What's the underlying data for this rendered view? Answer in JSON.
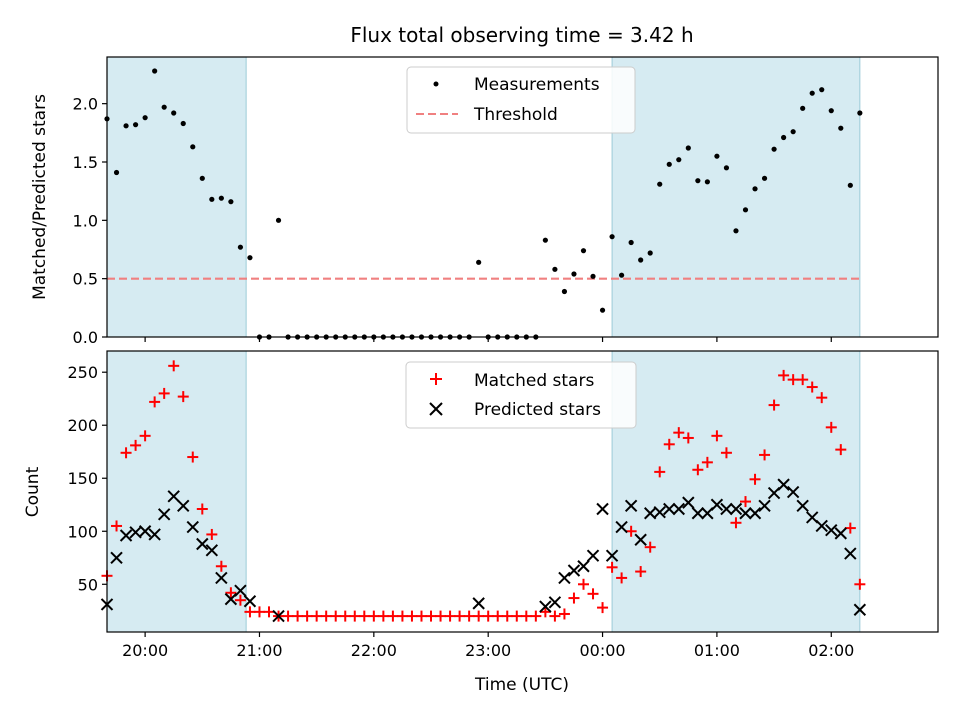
{
  "chart_data": [
    {
      "type": "scatter",
      "title": "Flux total observing time = 3.42 h",
      "xlabel": "",
      "ylabel": "Matched/Predicted stars",
      "ylim": [
        0.0,
        2.4
      ],
      "yticks": [
        0.0,
        0.5,
        1.0,
        1.5,
        2.0
      ],
      "xlim": [
        "19:40",
        "02:56"
      ],
      "xticks": [
        "20:00",
        "21:00",
        "22:00",
        "23:00",
        "00:00",
        "01:00",
        "02:00"
      ],
      "xtick_labels_shown": false,
      "grid": false,
      "legend_position": "top-center",
      "shaded_time_ranges": [
        [
          "19:40",
          "20:53"
        ],
        [
          "00:05",
          "02:15"
        ]
      ],
      "threshold": 0.5,
      "series": [
        {
          "name": "Measurements",
          "color": "#000000",
          "marker": "dot",
          "points": [
            [
              "19:40",
              1.87
            ],
            [
              "19:45",
              1.41
            ],
            [
              "19:50",
              1.81
            ],
            [
              "19:55",
              1.82
            ],
            [
              "20:00",
              1.88
            ],
            [
              "20:05",
              2.28
            ],
            [
              "20:10",
              1.97
            ],
            [
              "20:15",
              1.92
            ],
            [
              "20:20",
              1.83
            ],
            [
              "20:25",
              1.63
            ],
            [
              "20:30",
              1.36
            ],
            [
              "20:35",
              1.18
            ],
            [
              "20:40",
              1.19
            ],
            [
              "20:45",
              1.16
            ],
            [
              "20:50",
              0.77
            ],
            [
              "20:55",
              0.68
            ],
            [
              "21:00",
              0.0
            ],
            [
              "21:05",
              0.0
            ],
            [
              "21:10",
              1.0
            ],
            [
              "21:15",
              0.0
            ],
            [
              "21:20",
              0.0
            ],
            [
              "21:25",
              0.0
            ],
            [
              "21:30",
              0.0
            ],
            [
              "21:35",
              0.0
            ],
            [
              "21:40",
              0.0
            ],
            [
              "21:45",
              0.0
            ],
            [
              "21:50",
              0.0
            ],
            [
              "21:55",
              0.0
            ],
            [
              "22:00",
              0.0
            ],
            [
              "22:05",
              0.0
            ],
            [
              "22:10",
              0.0
            ],
            [
              "22:15",
              0.0
            ],
            [
              "22:20",
              0.0
            ],
            [
              "22:25",
              0.0
            ],
            [
              "22:30",
              0.0
            ],
            [
              "22:35",
              0.0
            ],
            [
              "22:40",
              0.0
            ],
            [
              "22:45",
              0.0
            ],
            [
              "22:50",
              0.0
            ],
            [
              "22:55",
              0.64
            ],
            [
              "23:00",
              0.0
            ],
            [
              "23:05",
              0.0
            ],
            [
              "23:10",
              0.0
            ],
            [
              "23:15",
              0.0
            ],
            [
              "23:20",
              0.0
            ],
            [
              "23:25",
              0.0
            ],
            [
              "23:30",
              0.83
            ],
            [
              "23:35",
              0.58
            ],
            [
              "23:40",
              0.39
            ],
            [
              "23:45",
              0.54
            ],
            [
              "23:50",
              0.74
            ],
            [
              "23:55",
              0.52
            ],
            [
              "00:00",
              0.23
            ],
            [
              "00:05",
              0.86
            ],
            [
              "00:10",
              0.53
            ],
            [
              "00:15",
              0.81
            ],
            [
              "00:20",
              0.66
            ],
            [
              "00:25",
              0.72
            ],
            [
              "00:30",
              1.31
            ],
            [
              "00:35",
              1.48
            ],
            [
              "00:40",
              1.52
            ],
            [
              "00:45",
              1.62
            ],
            [
              "00:50",
              1.34
            ],
            [
              "00:55",
              1.33
            ],
            [
              "01:00",
              1.55
            ],
            [
              "01:05",
              1.45
            ],
            [
              "01:10",
              0.91
            ],
            [
              "01:15",
              1.09
            ],
            [
              "01:20",
              1.27
            ],
            [
              "01:25",
              1.36
            ],
            [
              "01:30",
              1.61
            ],
            [
              "01:35",
              1.71
            ],
            [
              "01:40",
              1.76
            ],
            [
              "01:45",
              1.96
            ],
            [
              "01:50",
              2.09
            ],
            [
              "01:55",
              2.12
            ],
            [
              "02:00",
              1.94
            ],
            [
              "02:05",
              1.79
            ],
            [
              "02:10",
              1.3
            ],
            [
              "02:15",
              1.92
            ]
          ]
        },
        {
          "name": "Threshold",
          "color": "#f08080",
          "style": "dashed",
          "points": [
            [
              "19:40",
              0.5
            ],
            [
              "02:15",
              0.5
            ]
          ]
        }
      ]
    },
    {
      "type": "scatter",
      "title": "",
      "xlabel": "Time (UTC)",
      "ylabel": "Count",
      "ylim": [
        5,
        270
      ],
      "yticks": [
        50,
        100,
        150,
        200,
        250
      ],
      "xlim": [
        "19:40",
        "02:56"
      ],
      "xticks": [
        "20:00",
        "21:00",
        "22:00",
        "23:00",
        "00:00",
        "01:00",
        "02:00"
      ],
      "grid": false,
      "legend_position": "top-center",
      "shaded_time_ranges": [
        [
          "19:40",
          "20:53"
        ],
        [
          "00:05",
          "02:15"
        ]
      ],
      "series": [
        {
          "name": "Matched stars",
          "color": "#ff0000",
          "marker": "plus",
          "points": [
            [
              "19:40",
              58
            ],
            [
              "19:45",
              105
            ],
            [
              "19:50",
              174
            ],
            [
              "19:55",
              181
            ],
            [
              "20:00",
              190
            ],
            [
              "20:05",
              222
            ],
            [
              "20:10",
              230
            ],
            [
              "20:15",
              256
            ],
            [
              "20:20",
              227
            ],
            [
              "20:25",
              170
            ],
            [
              "20:30",
              121
            ],
            [
              "20:35",
              97
            ],
            [
              "20:40",
              67
            ],
            [
              "20:45",
              42
            ],
            [
              "20:50",
              35
            ],
            [
              "20:55",
              24
            ],
            [
              "21:00",
              24
            ],
            [
              "21:05",
              24
            ],
            [
              "21:10",
              20
            ],
            [
              "21:15",
              20
            ],
            [
              "21:20",
              20
            ],
            [
              "21:25",
              20
            ],
            [
              "21:30",
              20
            ],
            [
              "21:35",
              20
            ],
            [
              "21:40",
              20
            ],
            [
              "21:45",
              20
            ],
            [
              "21:50",
              20
            ],
            [
              "21:55",
              20
            ],
            [
              "22:00",
              20
            ],
            [
              "22:05",
              20
            ],
            [
              "22:10",
              20
            ],
            [
              "22:15",
              20
            ],
            [
              "22:20",
              20
            ],
            [
              "22:25",
              20
            ],
            [
              "22:30",
              20
            ],
            [
              "22:35",
              20
            ],
            [
              "22:40",
              20
            ],
            [
              "22:45",
              20
            ],
            [
              "22:50",
              20
            ],
            [
              "22:55",
              20
            ],
            [
              "23:00",
              20
            ],
            [
              "23:05",
              20
            ],
            [
              "23:10",
              20
            ],
            [
              "23:15",
              20
            ],
            [
              "23:20",
              20
            ],
            [
              "23:25",
              20
            ],
            [
              "23:30",
              24
            ],
            [
              "23:35",
              20
            ],
            [
              "23:40",
              22
            ],
            [
              "23:45",
              37
            ],
            [
              "23:50",
              50
            ],
            [
              "23:55",
              41
            ],
            [
              "00:00",
              28
            ],
            [
              "00:05",
              66
            ],
            [
              "00:10",
              56
            ],
            [
              "00:15",
              100
            ],
            [
              "00:20",
              62
            ],
            [
              "00:25",
              85
            ],
            [
              "00:30",
              156
            ],
            [
              "00:35",
              182
            ],
            [
              "00:40",
              193
            ],
            [
              "00:45",
              188
            ],
            [
              "00:50",
              158
            ],
            [
              "00:55",
              165
            ],
            [
              "01:00",
              190
            ],
            [
              "01:05",
              174
            ],
            [
              "01:10",
              108
            ],
            [
              "01:15",
              128
            ],
            [
              "01:20",
              149
            ],
            [
              "01:25",
              172
            ],
            [
              "01:30",
              219
            ],
            [
              "01:35",
              247
            ],
            [
              "01:40",
              243
            ],
            [
              "01:45",
              243
            ],
            [
              "01:50",
              236
            ],
            [
              "01:55",
              226
            ],
            [
              "02:00",
              198
            ],
            [
              "02:05",
              177
            ],
            [
              "02:10",
              103
            ],
            [
              "02:15",
              50
            ]
          ]
        },
        {
          "name": "Predicted stars",
          "color": "#000000",
          "marker": "x",
          "points": [
            [
              "19:40",
              31
            ],
            [
              "19:45",
              75
            ],
            [
              "19:50",
              96
            ],
            [
              "19:55",
              99
            ],
            [
              "20:00",
              100
            ],
            [
              "20:05",
              97
            ],
            [
              "20:10",
              116
            ],
            [
              "20:15",
              133
            ],
            [
              "20:20",
              124
            ],
            [
              "20:25",
              104
            ],
            [
              "20:30",
              88
            ],
            [
              "20:35",
              82
            ],
            [
              "20:40",
              56
            ],
            [
              "20:45",
              36
            ],
            [
              "20:50",
              44
            ],
            [
              "20:55",
              34
            ],
            [
              "21:10",
              20
            ],
            [
              "22:55",
              32
            ],
            [
              "23:30",
              29
            ],
            [
              "23:35",
              33
            ],
            [
              "23:40",
              56
            ],
            [
              "23:45",
              63
            ],
            [
              "23:50",
              67
            ],
            [
              "23:55",
              77
            ],
            [
              "00:00",
              121
            ],
            [
              "00:05",
              77
            ],
            [
              "00:10",
              104
            ],
            [
              "00:15",
              124
            ],
            [
              "00:20",
              92
            ],
            [
              "00:25",
              117
            ],
            [
              "00:30",
              118
            ],
            [
              "00:35",
              121
            ],
            [
              "00:40",
              121
            ],
            [
              "00:45",
              127
            ],
            [
              "00:50",
              117
            ],
            [
              "00:55",
              117
            ],
            [
              "01:00",
              125
            ],
            [
              "01:05",
              121
            ],
            [
              "01:10",
              121
            ],
            [
              "01:15",
              117
            ],
            [
              "01:20",
              117
            ],
            [
              "01:25",
              124
            ],
            [
              "01:30",
              136
            ],
            [
              "01:35",
              144
            ],
            [
              "01:40",
              137
            ],
            [
              "01:45",
              124
            ],
            [
              "01:50",
              113
            ],
            [
              "01:55",
              105
            ],
            [
              "02:00",
              101
            ],
            [
              "02:05",
              98
            ],
            [
              "02:10",
              79
            ],
            [
              "02:15",
              26
            ]
          ]
        }
      ]
    }
  ]
}
